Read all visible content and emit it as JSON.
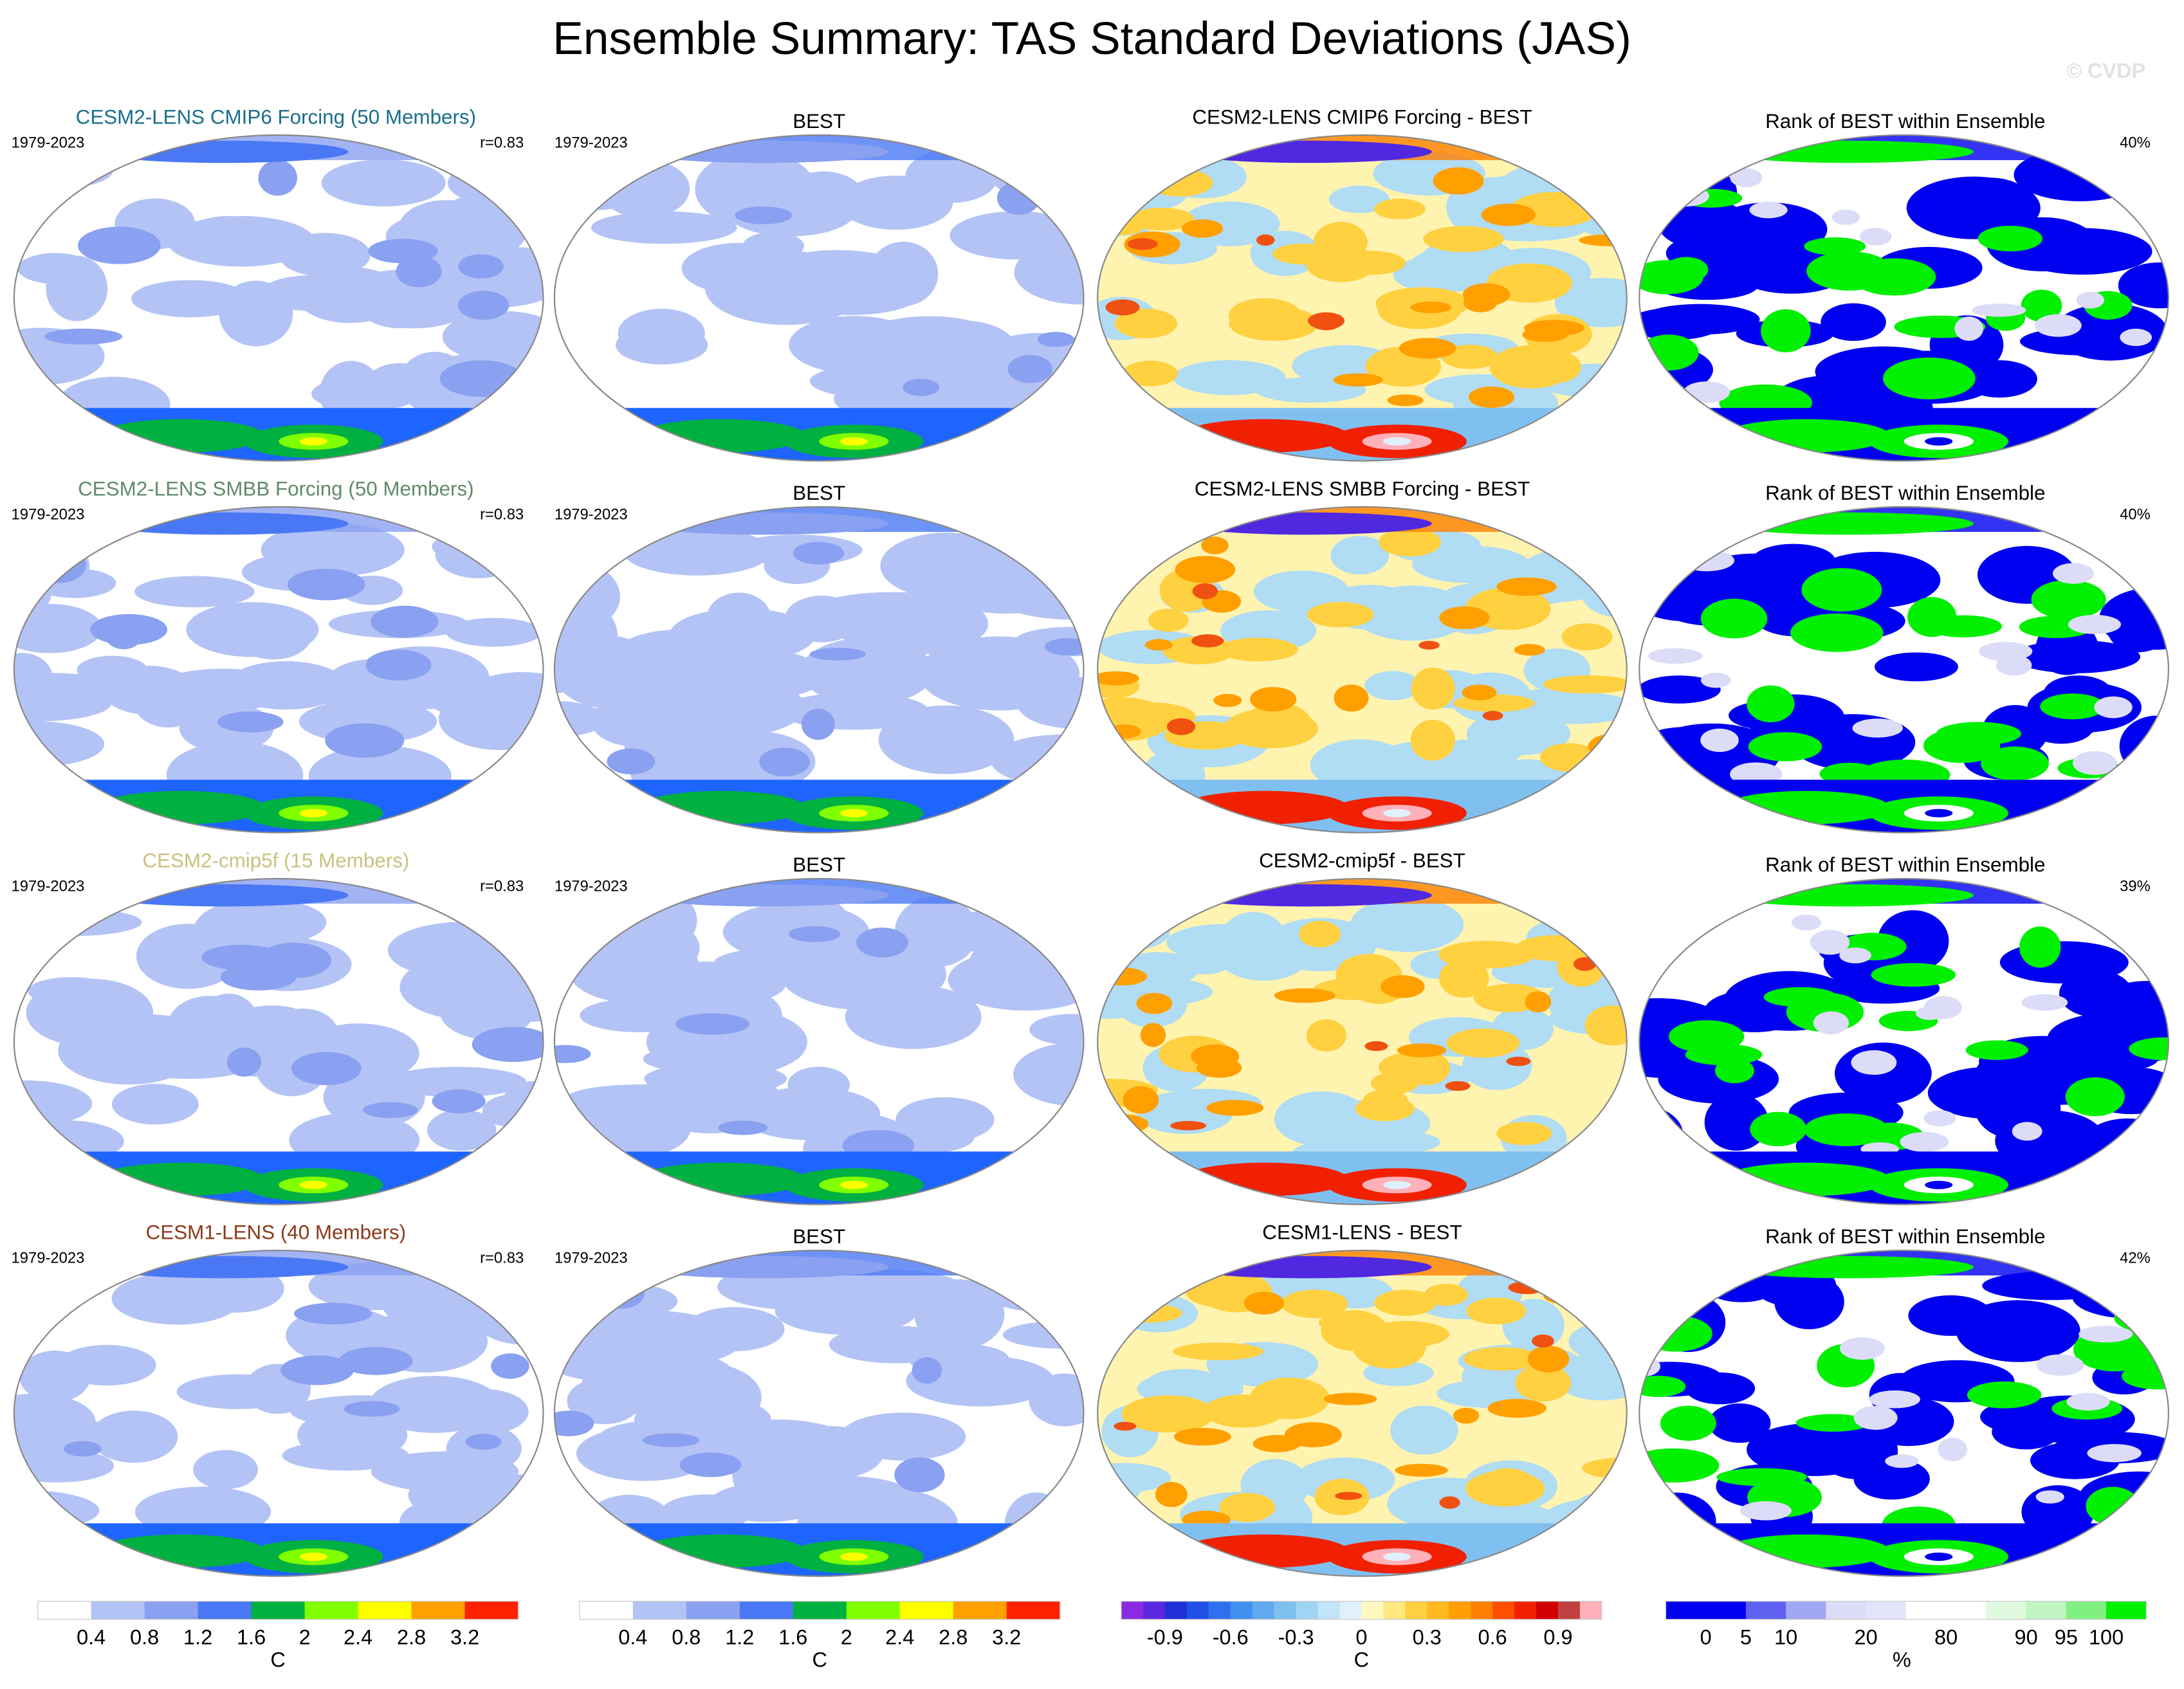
{
  "title": "Ensemble Summary: TAS Standard Deviations (JAS)",
  "watermark": "© CVDP",
  "rows": [
    {
      "model": {
        "title": "CESM2-LENS CMIP6 Forcing (50 Members)",
        "color": "#1a6e8a",
        "period": "1979-2023",
        "r": "r=0.83"
      },
      "obs": {
        "title": "BEST",
        "period": "1979-2023"
      },
      "diff": {
        "title": "CESM2-LENS CMIP6 Forcing - BEST"
      },
      "rank": {
        "title": "Rank of BEST within Ensemble",
        "pct": "40%"
      }
    },
    {
      "model": {
        "title": "CESM2-LENS SMBB Forcing (50 Members)",
        "color": "#5f8a68",
        "period": "1979-2023",
        "r": "r=0.83"
      },
      "obs": {
        "title": "BEST",
        "period": "1979-2023"
      },
      "diff": {
        "title": "CESM2-LENS SMBB Forcing - BEST"
      },
      "rank": {
        "title": "Rank of BEST within Ensemble",
        "pct": "40%"
      }
    },
    {
      "model": {
        "title": "CESM2-cmip5f (15 Members)",
        "color": "#c9c27e",
        "period": "1979-2023",
        "r": "r=0.83"
      },
      "obs": {
        "title": "BEST",
        "period": "1979-2023"
      },
      "diff": {
        "title": "CESM2-cmip5f - BEST"
      },
      "rank": {
        "title": "Rank of BEST within Ensemble",
        "pct": "39%"
      }
    },
    {
      "model": {
        "title": "CESM1-LENS (40 Members)",
        "color": "#8b3a1a",
        "period": "1979-2023",
        "r": "r=0.83"
      },
      "obs": {
        "title": "BEST",
        "period": "1979-2023"
      },
      "diff": {
        "title": "CESM1-LENS - BEST"
      },
      "rank": {
        "title": "Rank of BEST within Ensemble",
        "pct": "42%"
      }
    }
  ],
  "colorbars": [
    {
      "colors": [
        "#ffffff",
        "#b4c3f5",
        "#8aa0f0",
        "#4a78f5",
        "#00b040",
        "#80ff00",
        "#ffff00",
        "#ffa000",
        "#ff2000"
      ],
      "ticks": [
        0.4,
        0.8,
        1.2,
        1.6,
        2,
        2.4,
        2.8,
        3.2
      ],
      "unit": "C"
    },
    {
      "colors": [
        "#ffffff",
        "#b4c3f5",
        "#8aa0f0",
        "#4a78f5",
        "#00b040",
        "#80ff00",
        "#ffff00",
        "#ffa000",
        "#ff2000"
      ],
      "ticks": [
        0.4,
        0.8,
        1.2,
        1.6,
        2,
        2.4,
        2.8,
        3.2
      ],
      "unit": "C"
    },
    {
      "colors": [
        "#8a2be2",
        "#5a28e0",
        "#2030d8",
        "#2050e8",
        "#3070f0",
        "#4090f0",
        "#60a8f0",
        "#80c0f0",
        "#a0d4f4",
        "#c0e4f8",
        "#e0f0fc",
        "#fff8c0",
        "#ffe880",
        "#ffd040",
        "#ffb820",
        "#ffa000",
        "#ff8000",
        "#ff5000",
        "#f02000",
        "#d00000",
        "#c04040",
        "#ffb0b8"
      ],
      "ticks": [
        -0.9,
        -0.6,
        -0.3,
        0,
        0.3,
        0.6,
        0.9
      ],
      "unit": "C"
    },
    {
      "colors": [
        "#0000f0",
        "#0000f0",
        "#6060f0",
        "#a0a8f4",
        "#dcdcf8",
        "#e4e4fa",
        "#ffffff",
        "#ffffff",
        "#e0fae0",
        "#c0f4c0",
        "#80f080",
        "#00f000"
      ],
      "ticks": [
        0,
        5,
        10,
        20,
        80,
        90,
        95,
        100
      ],
      "unit": "%"
    }
  ]
}
